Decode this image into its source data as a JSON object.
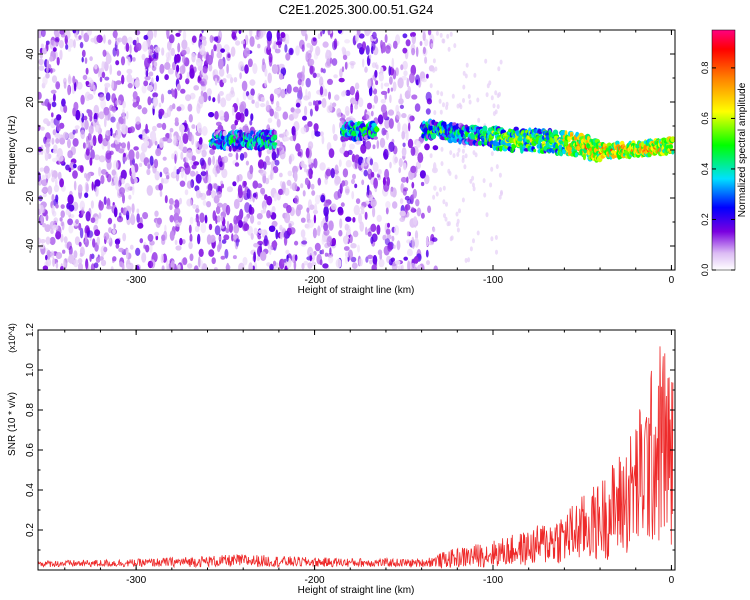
{
  "title": "C2E1.2025.300.00.51.G24",
  "chart_data": [
    {
      "type": "heatmap",
      "title": "C2E1.2025.300.00.51.G24",
      "xlabel": "Height of straight line (km)",
      "ylabel": "Frequency (Hz)",
      "xlim": [
        -355,
        2
      ],
      "ylim": [
        -50,
        50
      ],
      "xticks": [
        -300,
        -200,
        -100,
        0
      ],
      "yticks": [
        -40,
        -20,
        0,
        20,
        40
      ],
      "colorbar": {
        "label": "Normalized spectral amplitude",
        "range": [
          0,
          0.95
        ],
        "ticks": [
          "0.0",
          "0.2",
          "0.4",
          "0.6",
          "0.8"
        ],
        "colormap": [
          "#ffffff",
          "#dcbcf4",
          "#7a00e0",
          "#0000ff",
          "#00e0ff",
          "#00ff00",
          "#ffff00",
          "#ff8000",
          "#ff0000",
          "#ff0080"
        ]
      },
      "signal_track": {
        "description": "dominant frequency vs height",
        "height_km": [
          -258,
          -240,
          -225,
          -200,
          -180,
          -150,
          -130,
          -100,
          -80,
          -60,
          -40,
          -20,
          0
        ],
        "frequency_hz": [
          4,
          4,
          4,
          4,
          8,
          9,
          8,
          5,
          4,
          3,
          0,
          0,
          2
        ]
      },
      "noise_region_km": [
        -355,
        -135
      ]
    },
    {
      "type": "line",
      "xlabel": "Height of straight line (km)",
      "ylabel": "SNR (10 * v/v)",
      "y_exponent_label": "(x10^4)",
      "xlim": [
        -355,
        2
      ],
      "ylim": [
        0,
        1.2
      ],
      "xticks": [
        -300,
        -200,
        -100,
        0
      ],
      "yticks": [
        "0.2",
        "0.4",
        "0.6",
        "0.8",
        "1.0",
        "1.2"
      ],
      "series": [
        {
          "name": "SNR",
          "color": "#ee2a2a",
          "envelope_x": [
            -355,
            -300,
            -240,
            -200,
            -140,
            -125,
            -100,
            -80,
            -60,
            -40,
            -25,
            -15,
            -5,
            0
          ],
          "envelope_y": [
            0.04,
            0.05,
            0.08,
            0.06,
            0.05,
            0.1,
            0.15,
            0.2,
            0.3,
            0.45,
            0.65,
            0.9,
            1.2,
            1.0
          ]
        }
      ]
    }
  ]
}
